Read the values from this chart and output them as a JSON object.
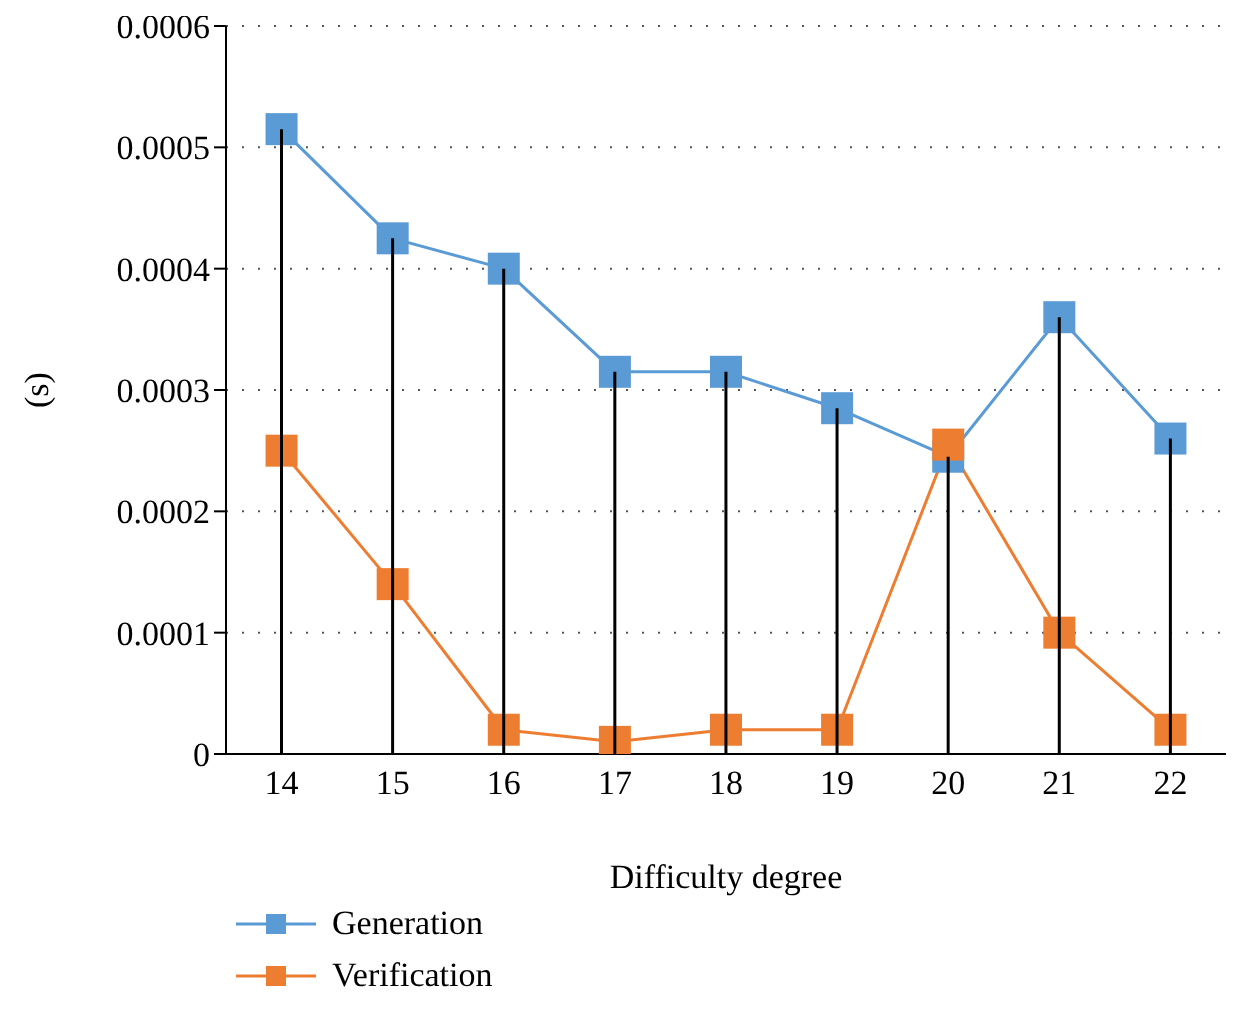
{
  "chart_data": {
    "type": "line",
    "xlabel": "Difficulty degree",
    "ylabel": "(s)",
    "categories": [
      "14",
      "15",
      "16",
      "17",
      "18",
      "19",
      "20",
      "21",
      "22"
    ],
    "series": [
      {
        "type": "bar",
        "color": "#000000",
        "values": [
          0.000515,
          0.000425,
          0.0004,
          0.000315,
          0.000315,
          0.000285,
          0.000245,
          0.00036,
          0.00026
        ]
      },
      {
        "name": "Generation",
        "color": "#5b9bd5",
        "values": [
          0.000515,
          0.000425,
          0.0004,
          0.000315,
          0.000315,
          0.000285,
          0.000245,
          0.00036,
          0.00026
        ]
      },
      {
        "name": "Verification",
        "color": "#ed7d31",
        "values": [
          0.00025,
          0.00014,
          2e-05,
          1e-05,
          2e-05,
          2e-05,
          0.000255,
          0.0001,
          2e-05
        ]
      }
    ],
    "ylim": [
      0,
      0.0006
    ],
    "yticks": [
      0,
      0.0001,
      0.0002,
      0.0003,
      0.0004,
      0.0005,
      0.0006
    ],
    "grid": "y",
    "legend": "bottom left",
    "marker": "square",
    "line_style": "solid"
  }
}
